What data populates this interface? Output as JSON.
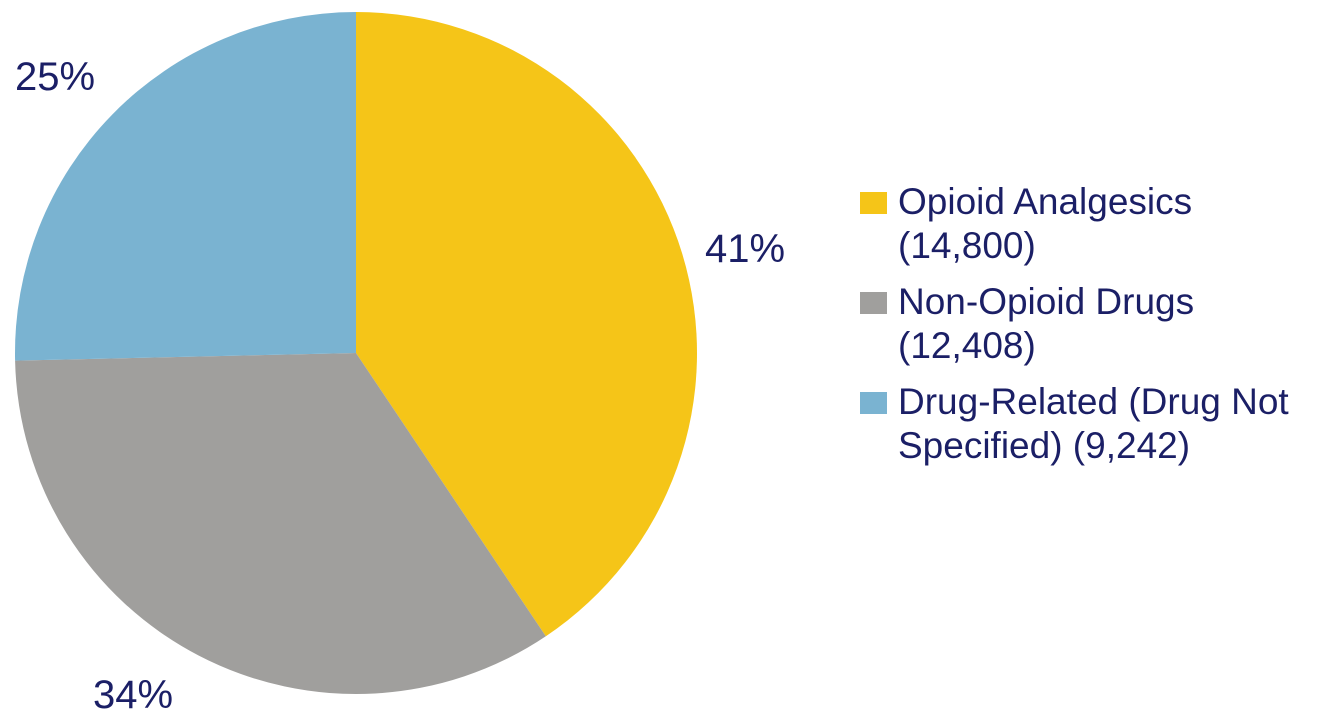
{
  "chart_data": {
    "type": "pie",
    "start_angle_deg": 0,
    "direction": "clockwise",
    "slices": [
      {
        "label": "Opioid Analgesics (14,800)",
        "value": 14800,
        "percent_label": "41%",
        "color": "#f5c518"
      },
      {
        "label": "Non-Opioid Drugs (12,408)",
        "value": 12408,
        "percent_label": "34%",
        "color": "#a09f9d"
      },
      {
        "label": "Drug-Related (Drug Not Specified) (9,242)",
        "value": 9242,
        "percent_label": "25%",
        "color": "#7ab3d1"
      }
    ],
    "legend_position": "right"
  }
}
